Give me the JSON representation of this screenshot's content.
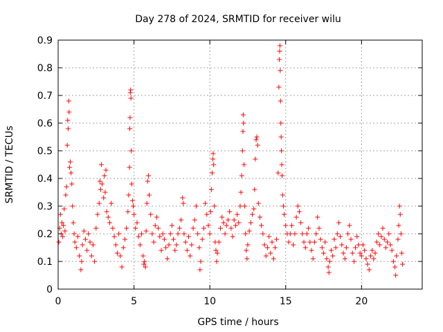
{
  "chart_data": {
    "type": "scatter",
    "title": "Day 278 of 2024, SRMTID for receiver wilu",
    "xlabel": "GPS time / hours",
    "ylabel": "SRMTID / TECUs",
    "xlim": [
      0,
      24
    ],
    "ylim": [
      0,
      0.9
    ],
    "xticks": [
      0,
      5,
      10,
      15,
      20
    ],
    "yticks": [
      0,
      0.1,
      0.2,
      0.3,
      0.4,
      0.5,
      0.6,
      0.7,
      0.8,
      0.9
    ],
    "xtick_labels": [
      "0",
      "5",
      "10",
      "15",
      "20"
    ],
    "ytick_labels": [
      "0",
      "0.1",
      "0.2",
      "0.3",
      "0.4",
      "0.5",
      "0.6",
      "0.7",
      "0.8",
      "0.9"
    ],
    "grid": true,
    "marker": "plus",
    "color": "#ff0000",
    "series": [
      {
        "name": "SRMTID",
        "points": [
          [
            0.05,
            0.17
          ],
          [
            0.1,
            0.22
          ],
          [
            0.15,
            0.27
          ],
          [
            0.2,
            0.2
          ],
          [
            0.25,
            0.24
          ],
          [
            0.3,
            0.19
          ],
          [
            0.35,
            0.23
          ],
          [
            0.4,
            0.29
          ],
          [
            0.45,
            0.21
          ],
          [
            0.5,
            0.34
          ],
          [
            0.55,
            0.37
          ],
          [
            0.6,
            0.52
          ],
          [
            0.63,
            0.61
          ],
          [
            0.66,
            0.58
          ],
          [
            0.7,
            0.68
          ],
          [
            0.72,
            0.64
          ],
          [
            0.75,
            0.44
          ],
          [
            0.8,
            0.46
          ],
          [
            0.85,
            0.42
          ],
          [
            0.9,
            0.38
          ],
          [
            0.95,
            0.3
          ],
          [
            1.0,
            0.24
          ],
          [
            1.05,
            0.2
          ],
          [
            1.1,
            0.17
          ],
          [
            1.2,
            0.15
          ],
          [
            1.3,
            0.19
          ],
          [
            1.4,
            0.12
          ],
          [
            1.5,
            0.07
          ],
          [
            1.55,
            0.1
          ],
          [
            1.6,
            0.16
          ],
          [
            1.7,
            0.21
          ],
          [
            1.8,
            0.18
          ],
          [
            1.9,
            0.14
          ],
          [
            2.0,
            0.2
          ],
          [
            2.1,
            0.17
          ],
          [
            2.2,
            0.12
          ],
          [
            2.3,
            0.16
          ],
          [
            2.4,
            0.1
          ],
          [
            2.5,
            0.22
          ],
          [
            2.6,
            0.27
          ],
          [
            2.7,
            0.31
          ],
          [
            2.75,
            0.39
          ],
          [
            2.8,
            0.36
          ],
          [
            2.85,
            0.45
          ],
          [
            2.9,
            0.38
          ],
          [
            3.0,
            0.33
          ],
          [
            3.05,
            0.41
          ],
          [
            3.1,
            0.35
          ],
          [
            3.15,
            0.43
          ],
          [
            3.2,
            0.28
          ],
          [
            3.3,
            0.26
          ],
          [
            3.4,
            0.24
          ],
          [
            3.5,
            0.31
          ],
          [
            3.6,
            0.22
          ],
          [
            3.7,
            0.19
          ],
          [
            3.8,
            0.16
          ],
          [
            3.9,
            0.13
          ],
          [
            4.0,
            0.2
          ],
          [
            4.1,
            0.12
          ],
          [
            4.2,
            0.08
          ],
          [
            4.3,
            0.15
          ],
          [
            4.4,
            0.18
          ],
          [
            4.5,
            0.22
          ],
          [
            4.6,
            0.28
          ],
          [
            4.65,
            0.34
          ],
          [
            4.7,
            0.44
          ],
          [
            4.72,
            0.58
          ],
          [
            4.74,
            0.62
          ],
          [
            4.76,
            0.71
          ],
          [
            4.78,
            0.72
          ],
          [
            4.8,
            0.69
          ],
          [
            4.82,
            0.5
          ],
          [
            4.85,
            0.38
          ],
          [
            4.9,
            0.32
          ],
          [
            4.95,
            0.3
          ],
          [
            5.0,
            0.27
          ],
          [
            5.1,
            0.22
          ],
          [
            5.2,
            0.24
          ],
          [
            5.3,
            0.19
          ],
          [
            5.4,
            0.16
          ],
          [
            5.5,
            0.2
          ],
          [
            5.6,
            0.12
          ],
          [
            5.65,
            0.09
          ],
          [
            5.7,
            0.1
          ],
          [
            5.75,
            0.08
          ],
          [
            5.8,
            0.21
          ],
          [
            5.85,
            0.31
          ],
          [
            5.9,
            0.39
          ],
          [
            5.95,
            0.41
          ],
          [
            6.0,
            0.34
          ],
          [
            6.1,
            0.27
          ],
          [
            6.2,
            0.2
          ],
          [
            6.3,
            0.17
          ],
          [
            6.4,
            0.23
          ],
          [
            6.5,
            0.26
          ],
          [
            6.6,
            0.22
          ],
          [
            6.7,
            0.19
          ],
          [
            6.8,
            0.14
          ],
          [
            6.9,
            0.2
          ],
          [
            7.0,
            0.18
          ],
          [
            7.1,
            0.15
          ],
          [
            7.2,
            0.11
          ],
          [
            7.3,
            0.16
          ],
          [
            7.4,
            0.2
          ],
          [
            7.5,
            0.23
          ],
          [
            7.6,
            0.18
          ],
          [
            7.7,
            0.14
          ],
          [
            7.8,
            0.16
          ],
          [
            7.9,
            0.2
          ],
          [
            8.0,
            0.22
          ],
          [
            8.1,
            0.25
          ],
          [
            8.2,
            0.33
          ],
          [
            8.25,
            0.31
          ],
          [
            8.3,
            0.2
          ],
          [
            8.4,
            0.17
          ],
          [
            8.5,
            0.14
          ],
          [
            8.6,
            0.19
          ],
          [
            8.7,
            0.12
          ],
          [
            8.8,
            0.16
          ],
          [
            8.9,
            0.22
          ],
          [
            9.0,
            0.25
          ],
          [
            9.1,
            0.3
          ],
          [
            9.2,
            0.2
          ],
          [
            9.3,
            0.15
          ],
          [
            9.35,
            0.07
          ],
          [
            9.4,
            0.1
          ],
          [
            9.5,
            0.18
          ],
          [
            9.6,
            0.22
          ],
          [
            9.7,
            0.31
          ],
          [
            9.8,
            0.27
          ],
          [
            9.9,
            0.23
          ],
          [
            10.0,
            0.2
          ],
          [
            10.05,
            0.28
          ],
          [
            10.1,
            0.36
          ],
          [
            10.15,
            0.42
          ],
          [
            10.2,
            0.47
          ],
          [
            10.22,
            0.49
          ],
          [
            10.25,
            0.45
          ],
          [
            10.3,
            0.3
          ],
          [
            10.35,
            0.17
          ],
          [
            10.4,
            0.14
          ],
          [
            10.45,
            0.1
          ],
          [
            10.5,
            0.13
          ],
          [
            10.6,
            0.17
          ],
          [
            10.7,
            0.22
          ],
          [
            10.8,
            0.26
          ],
          [
            10.9,
            0.24
          ],
          [
            11.0,
            0.2
          ],
          [
            11.1,
            0.23
          ],
          [
            11.2,
            0.25
          ],
          [
            11.3,
            0.28
          ],
          [
            11.4,
            0.22
          ],
          [
            11.5,
            0.19
          ],
          [
            11.6,
            0.25
          ],
          [
            11.7,
            0.23
          ],
          [
            11.8,
            0.27
          ],
          [
            11.9,
            0.24
          ],
          [
            12.0,
            0.3
          ],
          [
            12.05,
            0.35
          ],
          [
            12.1,
            0.41
          ],
          [
            12.15,
            0.5
          ],
          [
            12.18,
            0.57
          ],
          [
            12.2,
            0.63
          ],
          [
            12.22,
            0.6
          ],
          [
            12.25,
            0.45
          ],
          [
            12.3,
            0.3
          ],
          [
            12.35,
            0.2
          ],
          [
            12.4,
            0.14
          ],
          [
            12.45,
            0.11
          ],
          [
            12.5,
            0.16
          ],
          [
            12.6,
            0.21
          ],
          [
            12.7,
            0.24
          ],
          [
            12.8,
            0.27
          ],
          [
            12.9,
            0.29
          ],
          [
            12.95,
            0.36
          ],
          [
            13.0,
            0.47
          ],
          [
            13.05,
            0.54
          ],
          [
            13.1,
            0.55
          ],
          [
            13.15,
            0.52
          ],
          [
            13.2,
            0.31
          ],
          [
            13.3,
            0.26
          ],
          [
            13.4,
            0.23
          ],
          [
            13.5,
            0.2
          ],
          [
            13.6,
            0.16
          ],
          [
            13.7,
            0.12
          ],
          [
            13.8,
            0.15
          ],
          [
            13.9,
            0.19
          ],
          [
            14.0,
            0.13
          ],
          [
            14.1,
            0.17
          ],
          [
            14.2,
            0.11
          ],
          [
            14.3,
            0.15
          ],
          [
            14.4,
            0.18
          ],
          [
            14.5,
            0.42
          ],
          [
            14.55,
            0.73
          ],
          [
            14.58,
            0.83
          ],
          [
            14.6,
            0.86
          ],
          [
            14.62,
            0.88
          ],
          [
            14.64,
            0.79
          ],
          [
            14.66,
            0.68
          ],
          [
            14.68,
            0.6
          ],
          [
            14.7,
            0.55
          ],
          [
            14.72,
            0.5
          ],
          [
            14.74,
            0.45
          ],
          [
            14.76,
            0.41
          ],
          [
            14.8,
            0.34
          ],
          [
            14.85,
            0.3
          ],
          [
            14.9,
            0.27
          ],
          [
            15.0,
            0.23
          ],
          [
            15.1,
            0.2
          ],
          [
            15.2,
            0.17
          ],
          [
            15.3,
            0.2
          ],
          [
            15.4,
            0.23
          ],
          [
            15.5,
            0.16
          ],
          [
            15.6,
            0.2
          ],
          [
            15.7,
            0.26
          ],
          [
            15.8,
            0.3
          ],
          [
            15.9,
            0.28
          ],
          [
            16.0,
            0.24
          ],
          [
            16.1,
            0.2
          ],
          [
            16.2,
            0.17
          ],
          [
            16.3,
            0.15
          ],
          [
            16.4,
            0.2
          ],
          [
            16.5,
            0.22
          ],
          [
            16.6,
            0.17
          ],
          [
            16.7,
            0.14
          ],
          [
            16.8,
            0.11
          ],
          [
            16.9,
            0.17
          ],
          [
            17.0,
            0.2
          ],
          [
            17.1,
            0.26
          ],
          [
            17.2,
            0.22
          ],
          [
            17.3,
            0.18
          ],
          [
            17.4,
            0.15
          ],
          [
            17.5,
            0.13
          ],
          [
            17.6,
            0.17
          ],
          [
            17.7,
            0.11
          ],
          [
            17.8,
            0.08
          ],
          [
            17.85,
            0.06
          ],
          [
            17.9,
            0.1
          ],
          [
            18.0,
            0.14
          ],
          [
            18.1,
            0.12
          ],
          [
            18.2,
            0.18
          ],
          [
            18.3,
            0.15
          ],
          [
            18.4,
            0.2
          ],
          [
            18.5,
            0.24
          ],
          [
            18.6,
            0.19
          ],
          [
            18.7,
            0.16
          ],
          [
            18.8,
            0.13
          ],
          [
            18.9,
            0.11
          ],
          [
            19.0,
            0.15
          ],
          [
            19.1,
            0.2
          ],
          [
            19.2,
            0.23
          ],
          [
            19.3,
            0.18
          ],
          [
            19.4,
            0.13
          ],
          [
            19.5,
            0.1
          ],
          [
            19.6,
            0.15
          ],
          [
            19.7,
            0.19
          ],
          [
            19.8,
            0.16
          ],
          [
            19.9,
            0.13
          ],
          [
            20.0,
            0.12
          ],
          [
            20.1,
            0.16
          ],
          [
            20.2,
            0.14
          ],
          [
            20.3,
            0.11
          ],
          [
            20.4,
            0.09
          ],
          [
            20.5,
            0.07
          ],
          [
            20.6,
            0.12
          ],
          [
            20.7,
            0.14
          ],
          [
            20.8,
            0.11
          ],
          [
            20.9,
            0.13
          ],
          [
            21.0,
            0.17
          ],
          [
            21.1,
            0.2
          ],
          [
            21.2,
            0.16
          ],
          [
            21.3,
            0.19
          ],
          [
            21.4,
            0.22
          ],
          [
            21.5,
            0.18
          ],
          [
            21.6,
            0.15
          ],
          [
            21.7,
            0.17
          ],
          [
            21.8,
            0.2
          ],
          [
            21.9,
            0.16
          ],
          [
            22.0,
            0.14
          ],
          [
            22.1,
            0.1
          ],
          [
            22.2,
            0.08
          ],
          [
            22.25,
            0.05
          ],
          [
            22.3,
            0.12
          ],
          [
            22.4,
            0.18
          ],
          [
            22.45,
            0.23
          ],
          [
            22.5,
            0.3
          ],
          [
            22.55,
            0.27
          ],
          [
            22.6,
            0.2
          ],
          [
            22.65,
            0.13
          ],
          [
            22.7,
            0.09
          ]
        ]
      }
    ]
  }
}
